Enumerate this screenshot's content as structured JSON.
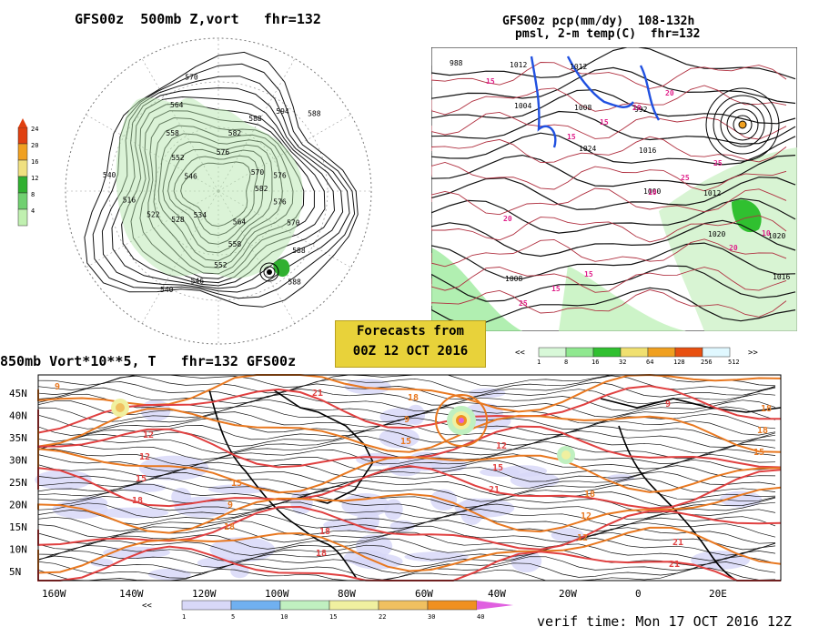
{
  "panels": {
    "polar": {
      "title": "GFS00z  500mb Z,vort   fhr=132",
      "scale_labels": [
        "24",
        "20",
        "16",
        "12",
        "8",
        "4"
      ],
      "scale_colors": [
        "#e04010",
        "#f0a020",
        "#f0e080",
        "#30b030",
        "#70d070",
        "#c0f0b0"
      ],
      "contour_labels": [
        "582",
        "576",
        "570",
        "588",
        "588",
        "564",
        "558",
        "552",
        "546",
        "540",
        "534",
        "528",
        "522",
        "516",
        "540",
        "546",
        "552",
        "558",
        "564",
        "570",
        "576",
        "582",
        "588",
        "594",
        "588",
        "570",
        "576"
      ]
    },
    "precip": {
      "title_line1": "GFS00z pcp(mm/dy)  108-132h",
      "title_line2": "pmsl, 2-m temp(C)  fhr=132",
      "scale_labels": [
        "1",
        "8",
        "16",
        "32",
        "64",
        "128",
        "256",
        "512"
      ],
      "scale_colors": [
        "#d8f8d8",
        "#90e890",
        "#30c030",
        "#f0e070",
        "#f0a020",
        "#e85010",
        "#e0f8ff"
      ],
      "isobar_labels": [
        "988",
        "1004",
        "1024",
        "1000",
        "1020",
        "1016",
        "1012",
        "1008",
        "1016",
        "1012",
        "1020",
        "1008",
        "1012",
        "992"
      ],
      "temp_labels": [
        "15",
        "15",
        "10",
        "20",
        "25",
        "15",
        "25",
        "10",
        "15",
        "20",
        "25",
        "20",
        "15",
        "20"
      ]
    },
    "streamline": {
      "title": "850mb Vort*10**5, T   fhr=132 GFS00z",
      "lat_labels": [
        "45N",
        "40N",
        "35N",
        "30N",
        "25N",
        "20N",
        "15N",
        "10N",
        "5N"
      ],
      "lon_labels": [
        "160W",
        "140W",
        "120W",
        "100W",
        "80W",
        "60W",
        "40W",
        "20W",
        "0",
        "20E"
      ],
      "scale_labels": [
        "1",
        "5",
        "10",
        "15",
        "22",
        "30",
        "40"
      ],
      "scale_colors": [
        "#d8d8f8",
        "#70b0f0",
        "#c0f0c0",
        "#f0f0a0",
        "#f0c060",
        "#f09020",
        "#e060e0"
      ],
      "temp_labels": [
        "9",
        "12",
        "15",
        "18",
        "18",
        "12",
        "18",
        "21",
        "18",
        "12",
        "9",
        "18",
        "9",
        "15",
        "12",
        "21",
        "18",
        "15",
        "18",
        "21",
        "15",
        "21",
        "12",
        "9",
        "15",
        "18"
      ]
    }
  },
  "forecast_box": {
    "line1": "Forecasts from",
    "line2": "00Z 12 OCT 2016"
  },
  "verif_time": "verif time: Mon 17 OCT 2016 12Z",
  "colors": {
    "orange_contour": "#e87820",
    "red_contour": "#e04040",
    "pink_label": "#e0208a",
    "blue_contour": "#2050e0"
  }
}
